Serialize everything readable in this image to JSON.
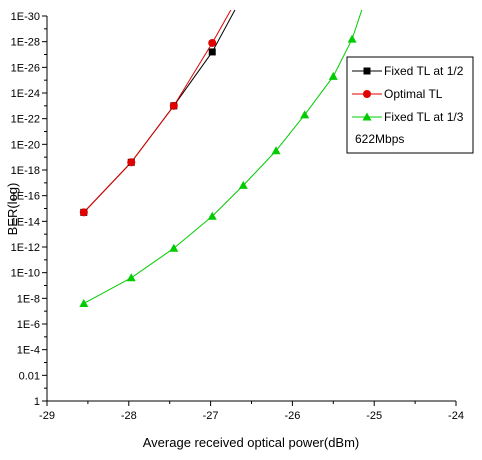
{
  "chart_data": {
    "type": "line",
    "xlabel": "Average received optical power(dBm)",
    "ylabel": "BER(log)",
    "xlim": [
      -29,
      -24
    ],
    "x_ticks": [
      -29,
      -28,
      -27,
      -26,
      -25,
      -24
    ],
    "x_tick_labels": [
      "-29",
      "-28",
      "-27",
      "-26",
      "-25",
      "-24"
    ],
    "ylim_log10": [
      -30,
      0
    ],
    "y_ticks_log10": [
      0,
      -2,
      -4,
      -6,
      -8,
      -10,
      -12,
      -14,
      -16,
      -18,
      -20,
      -22,
      -24,
      -26,
      -28,
      -30
    ],
    "y_tick_labels": [
      "1",
      "0.01",
      "1E-4",
      "1E-6",
      "1E-8",
      "1E-10",
      "1E-12",
      "1E-14",
      "1E-16",
      "1E-18",
      "1E-20",
      "1E-22",
      "1E-24",
      "1E-26",
      "1E-28",
      "1E-30"
    ],
    "y_scale": "log",
    "grid": false,
    "legend_position": "top-right",
    "legend_note": "622Mbps",
    "series": [
      {
        "name": "Fixed TL at 1/2",
        "color": "#000000",
        "marker": "square",
        "x": [
          -28.55,
          -27.97,
          -27.45,
          -26.98,
          -26.7
        ],
        "y_log10": [
          -14.7,
          -18.6,
          -23.0,
          -27.2,
          -30.5
        ]
      },
      {
        "name": "Optimal TL",
        "color": "#e00000",
        "marker": "circle",
        "x": [
          -28.55,
          -27.97,
          -27.45,
          -26.98,
          -26.75
        ],
        "y_log10": [
          -14.7,
          -18.6,
          -23.0,
          -27.9,
          -30.5
        ]
      },
      {
        "name": "Fixed TL at 1/3",
        "color": "#00cc00",
        "marker": "triangle",
        "x": [
          -28.55,
          -27.97,
          -27.45,
          -26.98,
          -26.6,
          -26.2,
          -25.85,
          -25.5,
          -25.27,
          -25.15
        ],
        "y_log10": [
          -7.6,
          -9.6,
          -11.9,
          -14.4,
          -16.8,
          -19.5,
          -22.3,
          -25.3,
          -28.2,
          -30.5
        ]
      }
    ]
  }
}
